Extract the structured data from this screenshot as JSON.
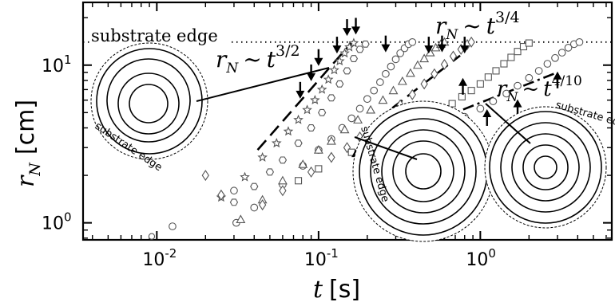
{
  "chart_data": {
    "type": "scatter",
    "title": "",
    "xlabel": "t [s]",
    "ylabel": "r_N [cm]",
    "xscale": "log",
    "yscale": "log",
    "xlim": [
      0.0035,
      6.5
    ],
    "ylim": [
      0.78,
      25
    ],
    "xticks": [
      {
        "value": 0.01,
        "label": "10",
        "exp": "-2"
      },
      {
        "value": 0.1,
        "label": "10",
        "exp": "-1"
      },
      {
        "value": 1,
        "label": "10",
        "exp": "0"
      }
    ],
    "yticks": [
      {
        "value": 1,
        "label": "10",
        "exp": "0"
      },
      {
        "value": 10,
        "label": "10",
        "exp": "1"
      }
    ],
    "substrate_edge": {
      "y": 14,
      "label": "substrate edge"
    },
    "series": [
      {
        "marker": "circle-small",
        "points": [
          [
            0.0093,
            0.82
          ],
          [
            0.0125,
            0.95
          ]
        ]
      },
      {
        "marker": "hexagon",
        "points": [
          [
            0.03,
            1.35
          ],
          [
            0.04,
            1.7
          ],
          [
            0.05,
            2.1
          ],
          [
            0.06,
            2.5
          ],
          [
            0.075,
            3.2
          ],
          [
            0.09,
            4.0
          ],
          [
            0.105,
            5.0
          ],
          [
            0.12,
            6.2
          ],
          [
            0.135,
            7.6
          ],
          [
            0.15,
            9.2
          ],
          [
            0.165,
            11.0
          ],
          [
            0.18,
            12.6
          ],
          [
            0.195,
            13.6
          ]
        ]
      },
      {
        "marker": "star",
        "points": [
          [
            0.025,
            1.45
          ],
          [
            0.035,
            1.95
          ],
          [
            0.045,
            2.6
          ],
          [
            0.055,
            3.2
          ],
          [
            0.065,
            3.8
          ],
          [
            0.075,
            4.5
          ],
          [
            0.085,
            5.2
          ],
          [
            0.095,
            6.0
          ],
          [
            0.105,
            7.0
          ],
          [
            0.115,
            8.1
          ],
          [
            0.125,
            9.3
          ],
          [
            0.135,
            10.6
          ],
          [
            0.145,
            11.9
          ],
          [
            0.155,
            13.0
          ],
          [
            0.165,
            13.8
          ]
        ]
      },
      {
        "marker": "circle",
        "points": [
          [
            0.031,
            1.0
          ],
          [
            0.04,
            1.25
          ],
          [
            0.06,
            1.75
          ],
          [
            0.08,
            2.3
          ],
          [
            0.1,
            2.9
          ],
          [
            0.12,
            3.4
          ],
          [
            0.14,
            4.0
          ],
          [
            0.16,
            4.6
          ],
          [
            0.18,
            5.3
          ],
          [
            0.2,
            6.1
          ],
          [
            0.22,
            6.9
          ],
          [
            0.24,
            7.8
          ],
          [
            0.26,
            8.8
          ],
          [
            0.28,
            9.8
          ],
          [
            0.3,
            10.9
          ],
          [
            0.32,
            11.9
          ],
          [
            0.34,
            12.8
          ],
          [
            0.36,
            13.6
          ],
          [
            0.38,
            14.0
          ]
        ]
      },
      {
        "marker": "triangle",
        "points": [
          [
            0.033,
            1.05
          ],
          [
            0.045,
            1.4
          ],
          [
            0.06,
            1.85
          ],
          [
            0.08,
            2.35
          ],
          [
            0.1,
            2.9
          ],
          [
            0.12,
            3.3
          ],
          [
            0.145,
            3.9
          ],
          [
            0.175,
            4.5
          ],
          [
            0.21,
            5.2
          ],
          [
            0.25,
            6.0
          ],
          [
            0.29,
            6.9
          ],
          [
            0.33,
            7.9
          ],
          [
            0.37,
            8.9
          ],
          [
            0.41,
            10.0
          ],
          [
            0.45,
            11.0
          ],
          [
            0.49,
            12.0
          ],
          [
            0.53,
            12.9
          ],
          [
            0.57,
            13.6
          ],
          [
            0.6,
            14.0
          ]
        ]
      },
      {
        "marker": "diamond",
        "points": [
          [
            0.02,
            2.0
          ],
          [
            0.025,
            1.5
          ],
          [
            0.045,
            1.3
          ],
          [
            0.06,
            1.6
          ],
          [
            0.09,
            2.1
          ],
          [
            0.12,
            2.6
          ],
          [
            0.15,
            3.0
          ],
          [
            0.18,
            3.5
          ],
          [
            0.22,
            4.1
          ],
          [
            0.27,
            4.8
          ],
          [
            0.32,
            5.6
          ],
          [
            0.38,
            6.5
          ],
          [
            0.45,
            7.6
          ],
          [
            0.52,
            8.8
          ],
          [
            0.6,
            10.1
          ],
          [
            0.68,
            11.4
          ],
          [
            0.76,
            12.6
          ],
          [
            0.83,
            13.5
          ],
          [
            0.88,
            14.0
          ]
        ]
      },
      {
        "marker": "square",
        "points": [
          [
            0.075,
            1.85
          ],
          [
            0.1,
            2.2
          ],
          [
            0.16,
            2.8
          ],
          [
            0.2,
            3.0
          ],
          [
            0.25,
            3.3
          ],
          [
            0.3,
            3.6
          ],
          [
            0.36,
            3.95
          ],
          [
            0.43,
            4.35
          ],
          [
            0.5,
            4.75
          ],
          [
            0.58,
            5.2
          ],
          [
            0.67,
            5.7
          ],
          [
            0.77,
            6.3
          ],
          [
            0.88,
            6.9
          ],
          [
            1.0,
            7.6
          ],
          [
            1.12,
            8.4
          ],
          [
            1.25,
            9.2
          ],
          [
            1.4,
            10.2
          ],
          [
            1.55,
            11.2
          ],
          [
            1.7,
            12.2
          ],
          [
            1.85,
            13.1
          ],
          [
            2.0,
            13.8
          ]
        ]
      },
      {
        "marker": "circle",
        "points": [
          [
            0.0125,
            0.95
          ],
          [
            0.03,
            1.6
          ],
          [
            0.24,
            3.05
          ],
          [
            0.4,
            3.55
          ],
          [
            0.6,
            4.1
          ],
          [
            0.8,
            4.7
          ],
          [
            1.0,
            5.3
          ],
          [
            1.2,
            5.9
          ],
          [
            1.45,
            6.6
          ],
          [
            1.7,
            7.4
          ],
          [
            2.0,
            8.3
          ],
          [
            2.3,
            9.2
          ],
          [
            2.6,
            10.2
          ],
          [
            2.9,
            11.1
          ],
          [
            3.2,
            12.0
          ],
          [
            3.5,
            12.9
          ],
          [
            3.8,
            13.6
          ],
          [
            4.1,
            14.0
          ]
        ]
      }
    ],
    "fits": [
      {
        "label": "r_N ~ t^{3/2}",
        "exponent": "3/2",
        "from": [
          0.042,
          2.9
        ],
        "to": [
          0.16,
          13.9
        ]
      },
      {
        "label": "",
        "exponent": "3/4",
        "from": [
          0.23,
          4.5
        ],
        "to": [
          0.75,
          11.5
        ]
      },
      {
        "label": "r_N ~ t^{4/10}",
        "exponent": "4/10",
        "from": [
          0.25,
          3.3
        ],
        "to": [
          3.0,
          9.0
        ]
      }
    ],
    "annotations": [
      {
        "text": "r_N ~ t^{3/4}",
        "base": "r",
        "sub": "N",
        "op": "~",
        "var": "t",
        "exp": "3/4"
      },
      {
        "text": "r_N ~ t^{3/2}",
        "base": "r",
        "sub": "N",
        "op": "~",
        "var": "t",
        "exp": "3/2"
      },
      {
        "text": "r_N ~ t^{4/10}",
        "base": "r",
        "sub": "N",
        "op": "~",
        "var": "t",
        "exp": "4/10"
      }
    ],
    "arrows_down": [
      [
        0.077,
        6.2
      ],
      [
        0.09,
        8.0
      ],
      [
        0.1,
        10.0
      ],
      [
        0.13,
        12.0
      ],
      [
        0.15,
        15.5
      ],
      [
        0.17,
        15.8
      ],
      [
        0.26,
        12.2
      ],
      [
        0.48,
        12.0
      ],
      [
        0.58,
        12.2
      ],
      [
        0.8,
        12.0
      ]
    ],
    "arrows_up": [
      [
        0.17,
        2.9
      ],
      [
        0.2,
        2.6
      ],
      [
        0.25,
        2.1
      ],
      [
        0.38,
        2.3
      ],
      [
        0.52,
        3.3
      ],
      [
        0.68,
        4.3
      ],
      [
        0.78,
        8.2
      ],
      [
        1.1,
        5.2
      ],
      [
        1.7,
        6.0
      ],
      [
        3.0,
        9.0
      ]
    ],
    "insets": [
      {
        "label": "substrate edge"
      },
      {
        "label": "substrate edge"
      },
      {
        "label": "substrate edge"
      }
    ]
  }
}
